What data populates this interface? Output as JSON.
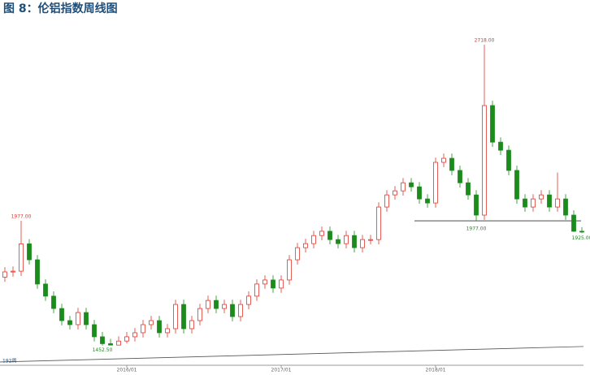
{
  "chart_data": {
    "type": "candlestick",
    "title": "图 8：伦铝指数周线图",
    "up_color": "#e0362c",
    "down_color": "#1b8c1b",
    "ylim": [
      1376,
      2872
    ],
    "categories": [
      null,
      null,
      null,
      null,
      null,
      null,
      null,
      null,
      null,
      null,
      null,
      null,
      null,
      null,
      null,
      "2016/01",
      null,
      null,
      null,
      null,
      null,
      null,
      null,
      null,
      null,
      null,
      null,
      null,
      null,
      null,
      null,
      null,
      null,
      null,
      "2017/01",
      null,
      null,
      null,
      null,
      null,
      null,
      null,
      null,
      null,
      null,
      null,
      null,
      null,
      null,
      null,
      null,
      null,
      null,
      "2018/01",
      null,
      null,
      null,
      null,
      null,
      null,
      null,
      null,
      null,
      null,
      null,
      null,
      null,
      null,
      null,
      null,
      null,
      null
    ],
    "ohlc": [
      [
        1740,
        1782,
        1720,
        1762
      ],
      [
        1762,
        1785,
        1742,
        1765
      ],
      [
        1765,
        1977,
        1745,
        1880
      ],
      [
        1880,
        1900,
        1793,
        1813
      ],
      [
        1813,
        1833,
        1691,
        1711
      ],
      [
        1711,
        1731,
        1640,
        1660
      ],
      [
        1660,
        1680,
        1588,
        1608
      ],
      [
        1608,
        1628,
        1537,
        1557
      ],
      [
        1557,
        1577,
        1520,
        1540
      ],
      [
        1540,
        1611,
        1520,
        1591
      ],
      [
        1591,
        1611,
        1520,
        1540
      ],
      [
        1540,
        1560,
        1469,
        1489
      ],
      [
        1489,
        1509,
        1452.5,
        1460
      ],
      [
        1460,
        1480,
        1454,
        1454
      ],
      [
        1454,
        1491,
        1454,
        1471
      ],
      [
        1471,
        1509,
        1461,
        1489
      ],
      [
        1489,
        1526,
        1469,
        1506
      ],
      [
        1506,
        1560,
        1486,
        1540
      ],
      [
        1540,
        1577,
        1520,
        1557
      ],
      [
        1557,
        1577,
        1486,
        1506
      ],
      [
        1506,
        1543,
        1486,
        1523
      ],
      [
        1523,
        1645,
        1503,
        1625
      ],
      [
        1625,
        1645,
        1503,
        1523
      ],
      [
        1523,
        1577,
        1503,
        1557
      ],
      [
        1557,
        1628,
        1537,
        1608
      ],
      [
        1608,
        1662,
        1588,
        1642
      ],
      [
        1642,
        1662,
        1588,
        1608
      ],
      [
        1608,
        1645,
        1588,
        1625
      ],
      [
        1625,
        1645,
        1554,
        1574
      ],
      [
        1574,
        1645,
        1554,
        1625
      ],
      [
        1625,
        1680,
        1605,
        1660
      ],
      [
        1660,
        1731,
        1640,
        1711
      ],
      [
        1711,
        1748,
        1691,
        1728
      ],
      [
        1728,
        1748,
        1674,
        1694
      ],
      [
        1694,
        1748,
        1674,
        1728
      ],
      [
        1728,
        1833,
        1708,
        1813
      ],
      [
        1813,
        1884,
        1793,
        1864
      ],
      [
        1864,
        1901,
        1844,
        1881
      ],
      [
        1881,
        1935,
        1861,
        1915
      ],
      [
        1915,
        1953,
        1895,
        1933
      ],
      [
        1933,
        1953,
        1878,
        1898
      ],
      [
        1898,
        1918,
        1861,
        1881
      ],
      [
        1881,
        1935,
        1861,
        1915
      ],
      [
        1915,
        1935,
        1844,
        1864
      ],
      [
        1864,
        1918,
        1844,
        1898
      ],
      [
        1898,
        1918,
        1878,
        1898
      ],
      [
        1898,
        2055,
        1878,
        2035
      ],
      [
        2035,
        2106,
        2015,
        2086
      ],
      [
        2086,
        2123,
        2066,
        2103
      ],
      [
        2103,
        2157,
        2083,
        2137
      ],
      [
        2137,
        2157,
        2100,
        2120
      ],
      [
        2120,
        2140,
        2049,
        2069
      ],
      [
        2069,
        2089,
        2032,
        2052
      ],
      [
        2052,
        2243,
        2032,
        2223
      ],
      [
        2223,
        2260,
        2203,
        2240
      ],
      [
        2240,
        2260,
        2169,
        2189
      ],
      [
        2189,
        2209,
        2117,
        2137
      ],
      [
        2137,
        2157,
        2066,
        2086
      ],
      [
        2086,
        2106,
        1977,
        2001
      ],
      [
        2001,
        2718,
        1981,
        2462
      ],
      [
        2462,
        2482,
        2288,
        2308
      ],
      [
        2308,
        2328,
        2254,
        2274
      ],
      [
        2274,
        2294,
        2169,
        2189
      ],
      [
        2189,
        2209,
        2049,
        2069
      ],
      [
        2069,
        2089,
        2015,
        2035
      ],
      [
        2035,
        2089,
        2015,
        2069
      ],
      [
        2069,
        2106,
        2049,
        2086
      ],
      [
        2086,
        2106,
        2015,
        2035
      ],
      [
        2035,
        2180,
        2015,
        2069
      ],
      [
        2069,
        2089,
        1981,
        2001
      ],
      [
        2001,
        2021,
        1930,
        1933
      ],
      [
        1933,
        1950,
        1925,
        1930
      ]
    ],
    "ma": {
      "name": "192周",
      "color": "#555555",
      "start": 1383,
      "end": 1448
    },
    "support": {
      "value": 1977,
      "label": "1977.00"
    },
    "annotations": [
      {
        "label": "1977.00",
        "value": 1977,
        "kind": "high"
      },
      {
        "label": "1452.50",
        "value": 1452.5,
        "kind": "low"
      },
      {
        "label": "2718.00",
        "value": 2718,
        "kind": "high"
      },
      {
        "label": "1925.00",
        "value": 1925,
        "kind": "low"
      }
    ]
  }
}
